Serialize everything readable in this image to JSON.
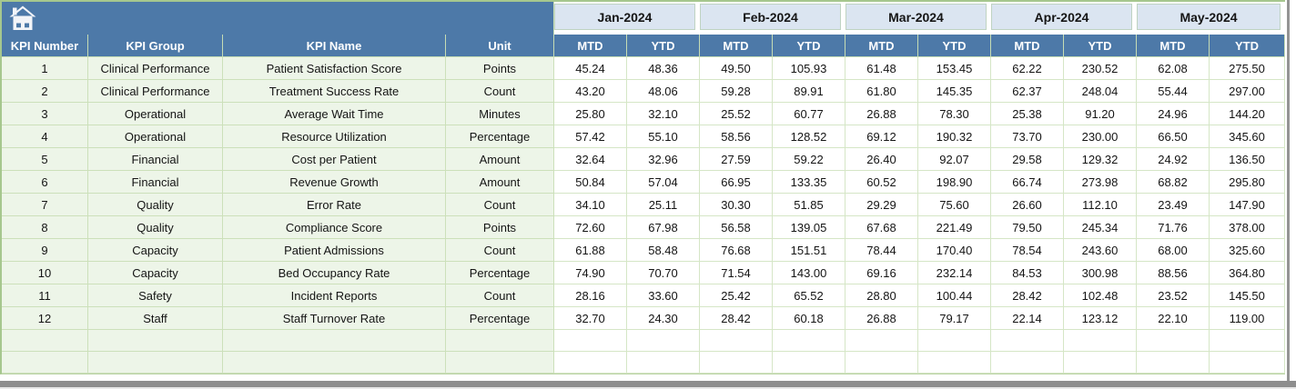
{
  "table": {
    "columns": [
      "KPI Number",
      "KPI Group",
      "KPI Name",
      "Unit"
    ],
    "months": [
      "Jan-2024",
      "Feb-2024",
      "Mar-2024",
      "Apr-2024",
      "May-2024"
    ],
    "sub_headers": [
      "MTD",
      "YTD"
    ],
    "rows": [
      {
        "kpi_number": "1",
        "kpi_group": "Clinical Performance",
        "kpi_name": "Patient Satisfaction Score",
        "unit": "Points",
        "values": [
          "45.24",
          "48.36",
          "49.50",
          "105.93",
          "61.48",
          "153.45",
          "62.22",
          "230.52",
          "62.08",
          "275.50"
        ]
      },
      {
        "kpi_number": "2",
        "kpi_group": "Clinical Performance",
        "kpi_name": "Treatment Success Rate",
        "unit": "Count",
        "values": [
          "43.20",
          "48.06",
          "59.28",
          "89.91",
          "61.80",
          "145.35",
          "62.37",
          "248.04",
          "55.44",
          "297.00"
        ]
      },
      {
        "kpi_number": "3",
        "kpi_group": "Operational",
        "kpi_name": "Average Wait Time",
        "unit": "Minutes",
        "values": [
          "25.80",
          "32.10",
          "25.52",
          "60.77",
          "26.88",
          "78.30",
          "25.38",
          "91.20",
          "24.96",
          "144.20"
        ]
      },
      {
        "kpi_number": "4",
        "kpi_group": "Operational",
        "kpi_name": "Resource Utilization",
        "unit": "Percentage",
        "values": [
          "57.42",
          "55.10",
          "58.56",
          "128.52",
          "69.12",
          "190.32",
          "73.70",
          "230.00",
          "66.50",
          "345.60"
        ]
      },
      {
        "kpi_number": "5",
        "kpi_group": "Financial",
        "kpi_name": "Cost per Patient",
        "unit": "Amount",
        "values": [
          "32.64",
          "32.96",
          "27.59",
          "59.22",
          "26.40",
          "92.07",
          "29.58",
          "129.32",
          "24.92",
          "136.50"
        ]
      },
      {
        "kpi_number": "6",
        "kpi_group": "Financial",
        "kpi_name": "Revenue Growth",
        "unit": "Amount",
        "values": [
          "50.84",
          "57.04",
          "66.95",
          "133.35",
          "60.52",
          "198.90",
          "66.74",
          "273.98",
          "68.82",
          "295.80"
        ]
      },
      {
        "kpi_number": "7",
        "kpi_group": "Quality",
        "kpi_name": "Error Rate",
        "unit": "Count",
        "values": [
          "34.10",
          "25.11",
          "30.30",
          "51.85",
          "29.29",
          "75.60",
          "26.60",
          "112.10",
          "23.49",
          "147.90"
        ]
      },
      {
        "kpi_number": "8",
        "kpi_group": "Quality",
        "kpi_name": "Compliance Score",
        "unit": "Points",
        "values": [
          "72.60",
          "67.98",
          "56.58",
          "139.05",
          "67.68",
          "221.49",
          "79.50",
          "245.34",
          "71.76",
          "378.00"
        ]
      },
      {
        "kpi_number": "9",
        "kpi_group": "Capacity",
        "kpi_name": "Patient Admissions",
        "unit": "Count",
        "values": [
          "61.88",
          "58.48",
          "76.68",
          "151.51",
          "78.44",
          "170.40",
          "78.54",
          "243.60",
          "68.00",
          "325.60"
        ]
      },
      {
        "kpi_number": "10",
        "kpi_group": "Capacity",
        "kpi_name": "Bed Occupancy Rate",
        "unit": "Percentage",
        "values": [
          "74.90",
          "70.70",
          "71.54",
          "143.00",
          "69.16",
          "232.14",
          "84.53",
          "300.98",
          "88.56",
          "364.80"
        ]
      },
      {
        "kpi_number": "11",
        "kpi_group": "Safety",
        "kpi_name": "Incident Reports",
        "unit": "Count",
        "values": [
          "28.16",
          "33.60",
          "25.42",
          "65.52",
          "28.80",
          "100.44",
          "28.42",
          "102.48",
          "23.52",
          "145.50"
        ]
      },
      {
        "kpi_number": "12",
        "kpi_group": "Staff",
        "kpi_name": "Staff Turnover Rate",
        "unit": "Percentage",
        "values": [
          "32.70",
          "24.30",
          "28.42",
          "60.18",
          "26.88",
          "79.17",
          "22.14",
          "123.12",
          "22.10",
          "119.00"
        ]
      }
    ],
    "empty_row_count": 2
  },
  "icons": {
    "home": "home-icon"
  },
  "colors": {
    "header_blue": "#4d79a8",
    "month_header_bg": "#dbe5f1",
    "row_label_bg": "#edf5e8",
    "grid_border_light": "#d5e6c6",
    "grid_border": "#cce0ba",
    "outer_border_green": "#a6c78e",
    "month_text": "#151515",
    "header_text": "#ffffff",
    "data_text": "#141414",
    "scrollbar_gray": "#8e8e8e"
  }
}
